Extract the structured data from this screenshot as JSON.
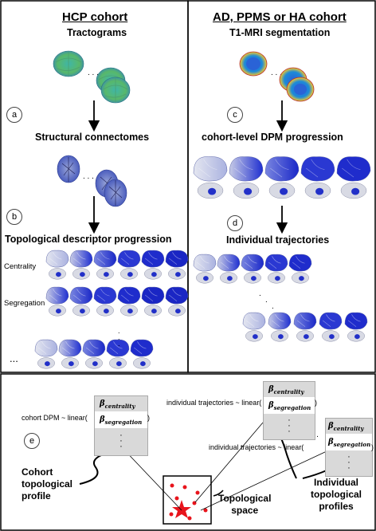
{
  "left_panel": {
    "title": "HCP cohort",
    "tractograms_label": "Tractograms",
    "step_a": "a",
    "connectomes_label": "Structural connectomes",
    "step_b": "b",
    "progression_label": "Topological descriptor progression",
    "row_centrality": "Centrality",
    "row_segregation": "Segregation",
    "ellipsis": "..."
  },
  "right_panel": {
    "title": "AD, PPMS or HA cohort",
    "segmentation_label": "T1-MRI segmentation",
    "step_c": "c",
    "dpm_label": "cohort-level DPM progression",
    "step_d": "d",
    "trajectories_label": "Individual trajectories"
  },
  "bottom_panel": {
    "step_e": "e",
    "eq_cohort_prefix": "cohort DPM ~ linear(",
    "eq_individual_prefix": "individual trajectories ~ linear(",
    "eq_suffix": ")",
    "beta_centrality": "centrality",
    "beta_segregation": "segregation",
    "beta_symbol": "β",
    "cohort_profile_label_1": "Cohort",
    "cohort_profile_label_2": "topological",
    "cohort_profile_label_3": "profile",
    "individual_profiles_label_1": "Individual",
    "individual_profiles_label_2": "topological",
    "individual_profiles_label_3": "profiles",
    "space_label_1": "Topological",
    "space_label_2": "space"
  },
  "colors": {
    "brain_dark": "#1f2fd0",
    "brain_light": "#c9cde6",
    "brain_mid": "#6b78df",
    "marker": "#e8141c"
  }
}
